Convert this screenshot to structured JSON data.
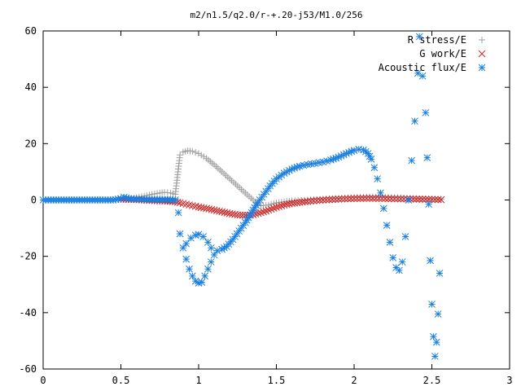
{
  "chart_data": {
    "type": "scatter",
    "title": "m2/n1.5/q2.0/r-+.20-j53/M1.0/256",
    "xlabel": "",
    "ylabel": "",
    "xlim": [
      0,
      3
    ],
    "ylim": [
      -60,
      60
    ],
    "x_ticks": [
      0,
      0.5,
      1,
      1.5,
      2,
      2.5,
      3
    ],
    "x_tick_labels": [
      "0",
      "0.5",
      "1",
      "1.5",
      "2",
      "2.5",
      "3"
    ],
    "y_ticks": [
      -60,
      -40,
      -20,
      0,
      20,
      40,
      60
    ],
    "y_tick_labels": [
      "-60",
      "-40",
      "-20",
      "0",
      "20",
      "40",
      "60"
    ],
    "grid": false,
    "legend_position": "top-right",
    "series": [
      {
        "name": "R stress/E",
        "marker": "plus",
        "color": "#a0a0a0",
        "points": [
          [
            0.0,
            0.0
          ],
          [
            0.05,
            0.0
          ],
          [
            0.1,
            0.0
          ],
          [
            0.15,
            0.0
          ],
          [
            0.2,
            0.0
          ],
          [
            0.25,
            0.0
          ],
          [
            0.3,
            0.0
          ],
          [
            0.35,
            0.0
          ],
          [
            0.4,
            0.0
          ],
          [
            0.45,
            0.0
          ],
          [
            0.5,
            0.2
          ],
          [
            0.55,
            0.4
          ],
          [
            0.6,
            0.8
          ],
          [
            0.65,
            1.4
          ],
          [
            0.7,
            2.0
          ],
          [
            0.75,
            2.5
          ],
          [
            0.78,
            2.7
          ],
          [
            0.82,
            2.5
          ],
          [
            0.85,
            2.0
          ],
          [
            0.88,
            16.0
          ],
          [
            0.9,
            17.0
          ],
          [
            0.93,
            17.5
          ],
          [
            0.96,
            17.3
          ],
          [
            1.0,
            16.5
          ],
          [
            1.05,
            14.8
          ],
          [
            1.1,
            12.5
          ],
          [
            1.15,
            10.0
          ],
          [
            1.2,
            7.5
          ],
          [
            1.25,
            5.0
          ],
          [
            1.3,
            2.5
          ],
          [
            1.35,
            0.0
          ],
          [
            1.4,
            -2.0
          ],
          [
            1.45,
            -1.8
          ],
          [
            1.5,
            -1.0
          ],
          [
            1.6,
            -0.3
          ],
          [
            1.7,
            0.0
          ],
          [
            1.8,
            0.3
          ],
          [
            1.9,
            0.6
          ],
          [
            2.0,
            0.9
          ],
          [
            2.1,
            1.1
          ],
          [
            2.2,
            1.0
          ],
          [
            2.3,
            0.8
          ],
          [
            2.4,
            0.5
          ],
          [
            2.5,
            0.3
          ],
          [
            2.56,
            0.2
          ]
        ]
      },
      {
        "name": "G work/E",
        "marker": "cross",
        "color": "#cc2020",
        "points": [
          [
            0.5,
            0.3
          ],
          [
            0.55,
            0.2
          ],
          [
            0.6,
            0.1
          ],
          [
            0.65,
            0.0
          ],
          [
            0.7,
            -0.2
          ],
          [
            0.75,
            -0.3
          ],
          [
            0.8,
            -0.4
          ],
          [
            0.85,
            -0.6
          ],
          [
            0.88,
            -1.0
          ],
          [
            0.92,
            -1.5
          ],
          [
            0.96,
            -2.0
          ],
          [
            1.0,
            -2.5
          ],
          [
            1.05,
            -3.0
          ],
          [
            1.1,
            -3.6
          ],
          [
            1.15,
            -4.2
          ],
          [
            1.2,
            -4.8
          ],
          [
            1.25,
            -5.3
          ],
          [
            1.3,
            -5.5
          ],
          [
            1.35,
            -5.2
          ],
          [
            1.4,
            -4.5
          ],
          [
            1.45,
            -3.6
          ],
          [
            1.5,
            -2.6
          ],
          [
            1.55,
            -1.8
          ],
          [
            1.6,
            -1.2
          ],
          [
            1.7,
            -0.5
          ],
          [
            1.8,
            0.0
          ],
          [
            1.9,
            0.3
          ],
          [
            2.0,
            0.5
          ],
          [
            2.1,
            0.6
          ],
          [
            2.2,
            0.5
          ],
          [
            2.3,
            0.4
          ],
          [
            2.4,
            0.3
          ],
          [
            2.5,
            0.2
          ],
          [
            2.56,
            0.1
          ]
        ]
      },
      {
        "name": "Acoustic flux/E",
        "marker": "star",
        "color": "#1a7fe0",
        "points": [
          [
            0.0,
            0.0
          ],
          [
            0.05,
            0.0
          ],
          [
            0.1,
            0.0
          ],
          [
            0.15,
            0.0
          ],
          [
            0.2,
            0.0
          ],
          [
            0.25,
            0.0
          ],
          [
            0.3,
            0.0
          ],
          [
            0.35,
            0.0
          ],
          [
            0.4,
            0.0
          ],
          [
            0.45,
            0.0
          ],
          [
            0.5,
            0.5
          ],
          [
            0.52,
            1.0
          ],
          [
            0.55,
            0.5
          ],
          [
            0.6,
            0.3
          ],
          [
            0.65,
            0.2
          ],
          [
            0.7,
            0.1
          ],
          [
            0.75,
            0.1
          ],
          [
            0.8,
            0.1
          ],
          [
            0.85,
            0.0
          ],
          [
            0.87,
            -4.5
          ],
          [
            0.88,
            -12.0
          ],
          [
            0.9,
            -17.0
          ],
          [
            0.92,
            -21.0
          ],
          [
            0.94,
            -24.5
          ],
          [
            0.96,
            -27.0
          ],
          [
            0.98,
            -28.8
          ],
          [
            1.0,
            -29.5
          ],
          [
            1.02,
            -29.2
          ],
          [
            1.04,
            -27.0
          ],
          [
            1.06,
            -24.5
          ],
          [
            1.08,
            -22.0
          ],
          [
            1.1,
            -19.5
          ],
          [
            1.12,
            -18.0
          ],
          [
            1.15,
            -17.5
          ],
          [
            0.92,
            -15.5
          ],
          [
            0.95,
            -13.5
          ],
          [
            0.98,
            -12.5
          ],
          [
            1.0,
            -12.2
          ],
          [
            1.03,
            -13.0
          ],
          [
            1.06,
            -15.0
          ],
          [
            1.08,
            -17.0
          ],
          [
            1.18,
            -16.5
          ],
          [
            1.22,
            -14.0
          ],
          [
            1.26,
            -11.0
          ],
          [
            1.3,
            -8.0
          ],
          [
            1.34,
            -4.5
          ],
          [
            1.38,
            -1.0
          ],
          [
            1.42,
            2.0
          ],
          [
            1.46,
            5.0
          ],
          [
            1.5,
            7.5
          ],
          [
            1.55,
            9.5
          ],
          [
            1.6,
            11.0
          ],
          [
            1.65,
            12.0
          ],
          [
            1.7,
            12.6
          ],
          [
            1.75,
            13.0
          ],
          [
            1.8,
            13.5
          ],
          [
            1.85,
            14.2
          ],
          [
            1.9,
            15.2
          ],
          [
            1.95,
            16.5
          ],
          [
            2.0,
            17.6
          ],
          [
            2.03,
            18.0
          ],
          [
            2.06,
            17.8
          ],
          [
            2.09,
            16.5
          ],
          [
            2.11,
            14.5
          ],
          [
            2.13,
            11.5
          ],
          [
            2.15,
            7.5
          ],
          [
            2.17,
            2.5
          ],
          [
            2.19,
            -3.0
          ],
          [
            2.21,
            -9.0
          ],
          [
            2.23,
            -15.0
          ],
          [
            2.25,
            -20.5
          ],
          [
            2.27,
            -24.0
          ],
          [
            2.29,
            -25.0
          ],
          [
            2.31,
            -22.0
          ],
          [
            2.33,
            -13.0
          ],
          [
            2.35,
            0.0
          ],
          [
            2.37,
            14.0
          ],
          [
            2.39,
            28.0
          ],
          [
            2.41,
            45.0
          ],
          [
            2.42,
            58.0
          ],
          [
            2.44,
            44.0
          ],
          [
            2.46,
            31.0
          ],
          [
            2.47,
            15.0
          ],
          [
            2.48,
            -1.5
          ],
          [
            2.49,
            -21.5
          ],
          [
            2.5,
            -37.0
          ],
          [
            2.51,
            -48.5
          ],
          [
            2.52,
            -55.5
          ],
          [
            2.53,
            -50.5
          ],
          [
            2.54,
            -40.5
          ],
          [
            2.55,
            -26.0
          ]
        ]
      }
    ]
  }
}
